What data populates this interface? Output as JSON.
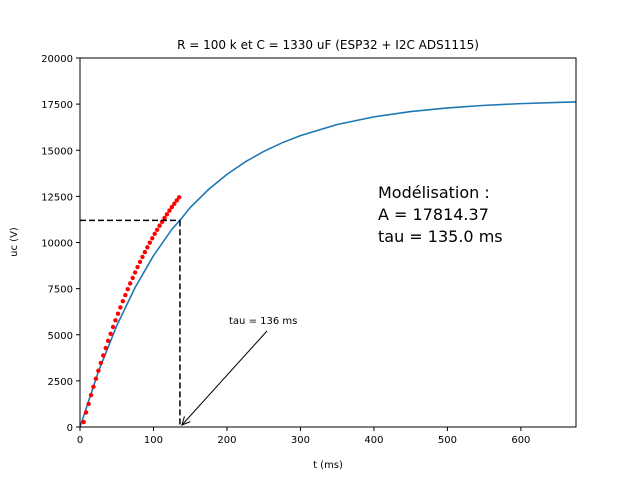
{
  "chart_data": {
    "type": "line",
    "title": "R = 100 k et C = 1330 uF (ESP32 + I2C ADS1115)",
    "xlabel": "t (ms)",
    "ylabel": "uc (V)",
    "xlim": [
      0,
      675
    ],
    "ylim": [
      0,
      20000
    ],
    "xticks": [
      0,
      100,
      200,
      300,
      400,
      500,
      600
    ],
    "yticks": [
      0,
      2500,
      5000,
      7500,
      10000,
      12500,
      15000,
      17500,
      20000
    ],
    "grid": false,
    "model_params": {
      "A": 17814.37,
      "tau": 135.0
    },
    "series": [
      {
        "kind": "model-curve",
        "color": "#1f77b4",
        "x": [
          0,
          25,
          50,
          75,
          100,
          125,
          136,
          150,
          175,
          200,
          225,
          250,
          275,
          300,
          350,
          400,
          450,
          500,
          550,
          600,
          650,
          675
        ],
        "y": [
          0,
          2999,
          5491,
          7562,
          9284,
          10714,
          11200,
          11896,
          12878,
          13694,
          14372,
          14936,
          15404,
          15794,
          16395,
          16810,
          17097,
          17295,
          17432,
          17527,
          17592,
          17618
        ]
      },
      {
        "kind": "measured-points",
        "color": "#ff0000",
        "x": [
          5,
          8.3,
          11.7,
          15,
          18.3,
          21.7,
          25,
          28.3,
          31.7,
          35,
          38.3,
          41.7,
          45,
          48.3,
          51.7,
          55,
          58.3,
          61.7,
          65,
          68.3,
          71.7,
          75,
          78.3,
          81.7,
          85,
          88.3,
          91.7,
          95,
          98.3,
          101.7,
          105,
          108.3,
          111.7,
          115,
          118.3,
          121.7,
          125,
          128.3,
          131.7,
          135
        ],
        "y": [
          270,
          790,
          1250,
          1730,
          2180,
          2620,
          3050,
          3470,
          3880,
          4280,
          4670,
          5050,
          5420,
          5780,
          6140,
          6480,
          6820,
          7150,
          7470,
          7780,
          8080,
          8380,
          8670,
          8950,
          9220,
          9480,
          9740,
          9990,
          10230,
          10470,
          10690,
          10910,
          11120,
          11330,
          11530,
          11730,
          11920,
          12100,
          12280,
          12450
        ]
      }
    ],
    "dashed_marker": {
      "x": 136,
      "y": 11200,
      "color": "#000000"
    },
    "annotations": {
      "arrow_text": "tau = 136 ms",
      "arrow_target_x": 136,
      "model_lines": [
        "Modélisation :",
        "A = 17814.37",
        "tau = 135.0 ms"
      ]
    }
  }
}
